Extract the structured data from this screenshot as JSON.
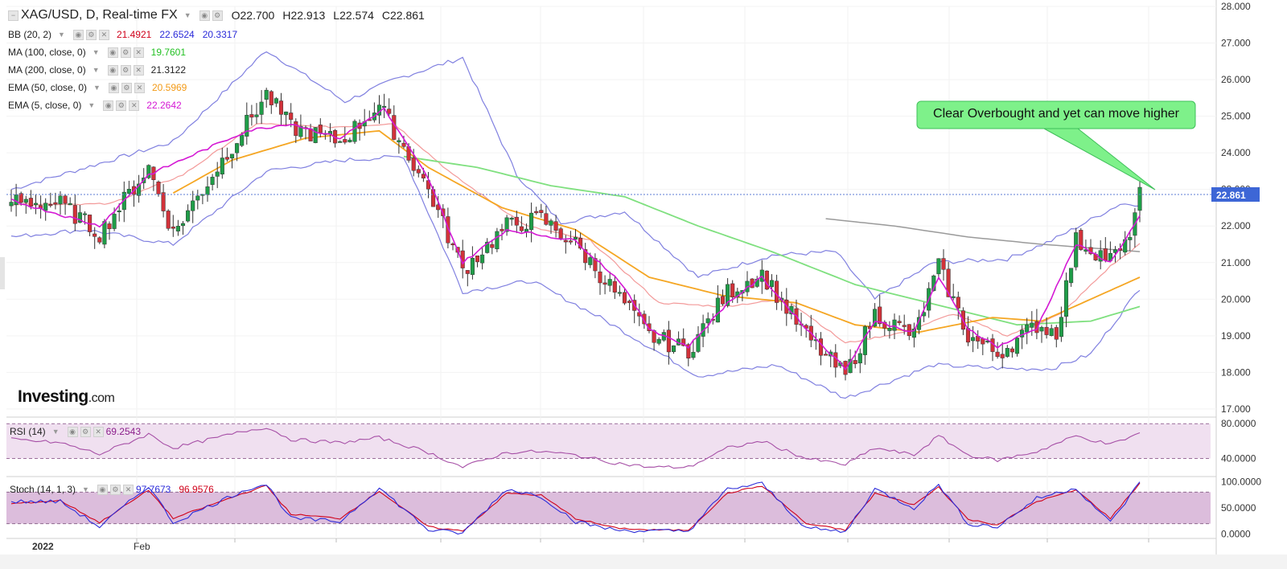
{
  "header": {
    "symbol": "XAG/USD, D, Real-time FX",
    "open": "O22.700",
    "high": "H22.913",
    "low": "L22.574",
    "close": "C22.861"
  },
  "indicators": [
    {
      "label": "BB (20, 2)",
      "values": [
        {
          "text": "21.4921",
          "color": "#d0021b"
        },
        {
          "text": "22.6524",
          "color": "#2b2bd9"
        },
        {
          "text": "20.3317",
          "color": "#2b2bd9"
        }
      ]
    },
    {
      "label": "MA (100, close, 0)",
      "values": [
        {
          "text": "19.7601",
          "color": "#22c022"
        }
      ]
    },
    {
      "label": "MA (200, close, 0)",
      "values": [
        {
          "text": "21.3122",
          "color": "#222222"
        }
      ]
    },
    {
      "label": "EMA (50, close, 0)",
      "values": [
        {
          "text": "20.5969",
          "color": "#f39a16"
        }
      ]
    },
    {
      "label": "EMA (5, close, 0)",
      "values": [
        {
          "text": "22.2642",
          "color": "#d418d4"
        }
      ]
    }
  ],
  "logo": {
    "brand": "Investing",
    "suffix": ".com"
  },
  "annotation": {
    "text": "Clear Overbought and yet can move higher",
    "fill": "#7ef18a"
  },
  "rsi": {
    "label": "RSI (14)",
    "value": "69.2543",
    "color": "#8b1e8b"
  },
  "stoch": {
    "label": "Stoch (14, 1, 3)",
    "k": "97.7673",
    "d": "96.9576",
    "k_color": "#2b2bd9",
    "d_color": "#d0021b"
  },
  "chart_data": {
    "type": "candlestick",
    "price_axis": {
      "ticks": [
        "28.000",
        "27.000",
        "26.000",
        "25.000",
        "24.000",
        "23.000",
        "22.000",
        "21.000",
        "20.000",
        "19.000",
        "18.000",
        "17.000"
      ],
      "range": [
        16.8,
        28.0
      ]
    },
    "last_price": "22.861",
    "x_labels": [
      "2022",
      "Feb"
    ],
    "rsi_axis": {
      "ticks": [
        "80.0000",
        "40.0000"
      ],
      "range": [
        22,
        83
      ]
    },
    "stoch_axis": {
      "ticks": [
        "100.0000",
        "50.0000",
        "0.0000"
      ],
      "range": [
        -5,
        105
      ]
    },
    "close_path": [
      [
        0,
        22.7
      ],
      [
        10,
        22.6
      ],
      [
        18,
        21.8
      ],
      [
        28,
        23.6
      ],
      [
        33,
        21.8
      ],
      [
        48,
        24.8
      ],
      [
        52,
        25.6
      ],
      [
        57,
        24.7
      ],
      [
        67,
        24.3
      ],
      [
        75,
        25.3
      ],
      [
        85,
        23.0
      ],
      [
        92,
        20.8
      ],
      [
        101,
        22.0
      ],
      [
        108,
        22.2
      ],
      [
        115,
        21.5
      ],
      [
        123,
        20.2
      ],
      [
        130,
        19.0
      ],
      [
        138,
        18.6
      ],
      [
        146,
        20.2
      ],
      [
        153,
        20.7
      ],
      [
        162,
        19.0
      ],
      [
        170,
        17.9
      ],
      [
        176,
        19.6
      ],
      [
        184,
        19.0
      ],
      [
        189,
        20.9
      ],
      [
        195,
        19.0
      ],
      [
        201,
        18.5
      ],
      [
        209,
        19.3
      ],
      [
        213,
        19.1
      ],
      [
        217,
        21.6
      ],
      [
        224,
        21.1
      ],
      [
        227,
        21.4
      ],
      [
        230,
        22.86
      ]
    ],
    "bb_upper_path": [
      [
        0,
        23.0
      ],
      [
        33,
        24.3
      ],
      [
        52,
        26.8
      ],
      [
        68,
        25.4
      ],
      [
        78,
        26.0
      ],
      [
        92,
        26.6
      ],
      [
        103,
        23.4
      ],
      [
        112,
        22.1
      ],
      [
        125,
        22.4
      ],
      [
        140,
        20.6
      ],
      [
        155,
        21.2
      ],
      [
        168,
        21.3
      ],
      [
        176,
        20.0
      ],
      [
        188,
        21.0
      ],
      [
        203,
        21.1
      ],
      [
        212,
        21.6
      ],
      [
        226,
        22.6
      ],
      [
        230,
        22.6
      ]
    ],
    "bb_lower_path": [
      [
        0,
        21.7
      ],
      [
        15,
        21.9
      ],
      [
        33,
        21.5
      ],
      [
        52,
        23.5
      ],
      [
        68,
        23.8
      ],
      [
        80,
        23.9
      ],
      [
        92,
        20.2
      ],
      [
        106,
        20.5
      ],
      [
        120,
        19.5
      ],
      [
        140,
        17.9
      ],
      [
        156,
        18.2
      ],
      [
        170,
        17.3
      ],
      [
        188,
        18.2
      ],
      [
        203,
        18.1
      ],
      [
        212,
        18.1
      ],
      [
        220,
        18.5
      ],
      [
        230,
        20.3
      ]
    ],
    "ema5_path": [
      [
        0,
        22.7
      ],
      [
        18,
        22.0
      ],
      [
        28,
        23.4
      ],
      [
        48,
        24.6
      ],
      [
        57,
        24.8
      ],
      [
        67,
        24.4
      ],
      [
        76,
        25.2
      ],
      [
        85,
        23.3
      ],
      [
        92,
        21.0
      ],
      [
        101,
        21.9
      ],
      [
        115,
        21.6
      ],
      [
        124,
        20.5
      ],
      [
        130,
        19.2
      ],
      [
        138,
        18.7
      ],
      [
        146,
        19.9
      ],
      [
        153,
        20.6
      ],
      [
        162,
        19.2
      ],
      [
        170,
        18.1
      ],
      [
        176,
        19.4
      ],
      [
        184,
        19.1
      ],
      [
        189,
        20.6
      ],
      [
        195,
        19.2
      ],
      [
        201,
        18.7
      ],
      [
        209,
        19.2
      ],
      [
        217,
        21.5
      ],
      [
        224,
        21.0
      ],
      [
        230,
        22.26
      ]
    ],
    "ema50_path": [
      [
        33,
        22.9
      ],
      [
        45,
        23.8
      ],
      [
        60,
        24.4
      ],
      [
        75,
        24.6
      ],
      [
        85,
        23.6
      ],
      [
        100,
        22.5
      ],
      [
        115,
        21.9
      ],
      [
        130,
        20.6
      ],
      [
        145,
        20.1
      ],
      [
        160,
        19.9
      ],
      [
        172,
        19.3
      ],
      [
        185,
        19.1
      ],
      [
        200,
        19.5
      ],
      [
        210,
        19.4
      ],
      [
        220,
        20.0
      ],
      [
        230,
        20.6
      ]
    ],
    "ema20_path": [
      [
        0,
        22.6
      ],
      [
        20,
        22.6
      ],
      [
        35,
        23.4
      ],
      [
        50,
        24.8
      ],
      [
        65,
        24.7
      ],
      [
        78,
        24.8
      ],
      [
        90,
        23.4
      ],
      [
        105,
        22.0
      ],
      [
        118,
        21.6
      ],
      [
        132,
        19.9
      ],
      [
        145,
        19.8
      ],
      [
        158,
        20.0
      ],
      [
        170,
        18.8
      ],
      [
        182,
        19.1
      ],
      [
        192,
        19.6
      ],
      [
        203,
        19.0
      ],
      [
        214,
        19.6
      ],
      [
        224,
        20.9
      ],
      [
        230,
        21.5
      ]
    ],
    "ma100_path": [
      [
        80,
        23.9
      ],
      [
        95,
        23.6
      ],
      [
        110,
        23.1
      ],
      [
        125,
        22.8
      ],
      [
        140,
        22.0
      ],
      [
        155,
        21.3
      ],
      [
        172,
        20.4
      ],
      [
        190,
        19.8
      ],
      [
        205,
        19.3
      ],
      [
        220,
        19.4
      ],
      [
        230,
        19.8
      ]
    ],
    "ma200_path": [
      [
        166,
        22.2
      ],
      [
        180,
        22.0
      ],
      [
        195,
        21.7
      ],
      [
        210,
        21.5
      ],
      [
        230,
        21.3
      ]
    ],
    "rsi_path": [
      [
        0,
        62
      ],
      [
        10,
        58
      ],
      [
        18,
        45
      ],
      [
        28,
        68
      ],
      [
        33,
        52
      ],
      [
        48,
        72
      ],
      [
        52,
        76
      ],
      [
        57,
        62
      ],
      [
        67,
        58
      ],
      [
        75,
        64
      ],
      [
        85,
        47
      ],
      [
        92,
        30
      ],
      [
        101,
        47
      ],
      [
        108,
        48
      ],
      [
        115,
        44
      ],
      [
        123,
        35
      ],
      [
        130,
        30
      ],
      [
        138,
        30
      ],
      [
        146,
        52
      ],
      [
        153,
        60
      ],
      [
        162,
        40
      ],
      [
        170,
        33
      ],
      [
        176,
        52
      ],
      [
        184,
        44
      ],
      [
        189,
        66
      ],
      [
        195,
        44
      ],
      [
        201,
        38
      ],
      [
        209,
        48
      ],
      [
        217,
        66
      ],
      [
        224,
        56
      ],
      [
        230,
        69
      ]
    ],
    "stoch_k_path": [
      [
        0,
        62
      ],
      [
        10,
        62
      ],
      [
        18,
        14
      ],
      [
        28,
        92
      ],
      [
        33,
        22
      ],
      [
        48,
        86
      ],
      [
        52,
        95
      ],
      [
        57,
        30
      ],
      [
        67,
        24
      ],
      [
        75,
        88
      ],
      [
        85,
        8
      ],
      [
        92,
        2
      ],
      [
        101,
        86
      ],
      [
        108,
        72
      ],
      [
        115,
        24
      ],
      [
        123,
        8
      ],
      [
        130,
        6
      ],
      [
        138,
        6
      ],
      [
        146,
        86
      ],
      [
        153,
        96
      ],
      [
        162,
        12
      ],
      [
        170,
        4
      ],
      [
        176,
        86
      ],
      [
        184,
        50
      ],
      [
        189,
        95
      ],
      [
        195,
        20
      ],
      [
        201,
        14
      ],
      [
        209,
        68
      ],
      [
        217,
        88
      ],
      [
        224,
        22
      ],
      [
        230,
        98
      ]
    ],
    "stoch_d_path": [
      [
        0,
        58
      ],
      [
        10,
        64
      ],
      [
        18,
        22
      ],
      [
        28,
        84
      ],
      [
        33,
        30
      ],
      [
        48,
        80
      ],
      [
        52,
        92
      ],
      [
        57,
        38
      ],
      [
        67,
        30
      ],
      [
        75,
        82
      ],
      [
        85,
        14
      ],
      [
        92,
        6
      ],
      [
        101,
        78
      ],
      [
        108,
        74
      ],
      [
        115,
        30
      ],
      [
        123,
        12
      ],
      [
        130,
        8
      ],
      [
        138,
        8
      ],
      [
        146,
        78
      ],
      [
        153,
        92
      ],
      [
        162,
        20
      ],
      [
        170,
        8
      ],
      [
        176,
        78
      ],
      [
        184,
        56
      ],
      [
        189,
        90
      ],
      [
        195,
        28
      ],
      [
        201,
        18
      ],
      [
        209,
        62
      ],
      [
        217,
        84
      ],
      [
        224,
        30
      ],
      [
        230,
        97
      ]
    ]
  }
}
